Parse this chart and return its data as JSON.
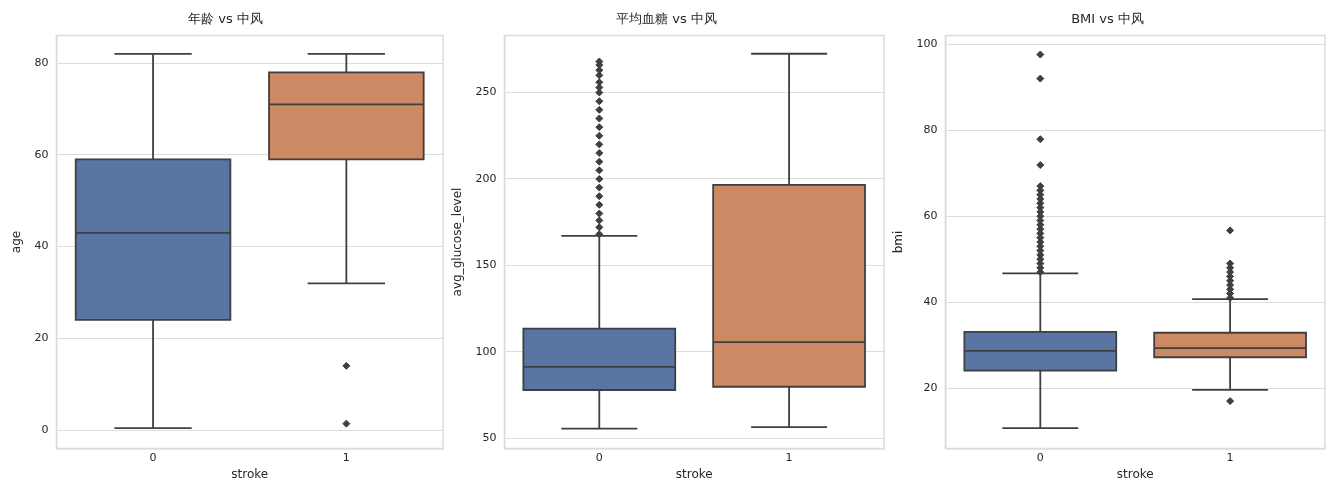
{
  "chart_data": [
    {
      "type": "box",
      "title": "年龄 vs 中风",
      "xlabel": "stroke",
      "ylabel": "age",
      "categories": [
        "0",
        "1"
      ],
      "colors": [
        "#5875a4",
        "#cc8963"
      ],
      "boxes": [
        {
          "low": 0.4,
          "q1": 24,
          "median": 43,
          "q3": 59,
          "high": 82
        },
        {
          "low": 32,
          "q1": 59,
          "median": 71,
          "q3": 78,
          "high": 82,
          "outliers": [
            14,
            1.4
          ]
        }
      ],
      "ylim": [
        -4,
        86
      ],
      "yticks": [
        0,
        20,
        40,
        60,
        80
      ],
      "grid": "y"
    },
    {
      "type": "box",
      "title": "平均血糖 vs 中风",
      "xlabel": "stroke",
      "ylabel": "avg_glucose_level",
      "categories": [
        "0",
        "1"
      ],
      "colors": [
        "#5875a4",
        "#cc8963"
      ],
      "boxes": [
        {
          "low": 55.5,
          "q1": 77.8,
          "median": 91.2,
          "q3": 113.3,
          "high": 167,
          "outliers": [
            168,
            172,
            176,
            180,
            185,
            190,
            195,
            200,
            205,
            210,
            215,
            220,
            225,
            230,
            235,
            240,
            245,
            250,
            253,
            256,
            260,
            263,
            266,
            268
          ]
        },
        {
          "low": 56.3,
          "q1": 79.7,
          "median": 105.5,
          "q3": 196.6,
          "high": 272.5
        }
      ],
      "ylim": [
        44,
        283
      ],
      "yticks": [
        50,
        100,
        150,
        200,
        250
      ],
      "grid": "y"
    },
    {
      "type": "box",
      "title": "BMI vs 中风",
      "xlabel": "stroke",
      "ylabel": "bmi",
      "categories": [
        "0",
        "1"
      ],
      "colors": [
        "#5875a4",
        "#cc8963"
      ],
      "boxes": [
        {
          "low": 10.7,
          "q1": 24.1,
          "median": 28.7,
          "q3": 33.1,
          "high": 46.7,
          "outliers": [
            47,
            48,
            49,
            50,
            51,
            52,
            53,
            54,
            55,
            56,
            57,
            58,
            59,
            60,
            61,
            62,
            63,
            64,
            65,
            66,
            67,
            71.9,
            77.9,
            92,
            97.6
          ]
        },
        {
          "low": 19.6,
          "q1": 27.2,
          "median": 29.3,
          "q3": 32.9,
          "high": 40.7,
          "outliers": [
            41,
            42,
            43,
            44,
            45,
            46,
            47,
            48,
            49,
            56.7,
            17
          ]
        }
      ],
      "ylim": [
        6,
        102
      ],
      "yticks": [
        20,
        40,
        60,
        80,
        100
      ],
      "grid": "y"
    }
  ]
}
